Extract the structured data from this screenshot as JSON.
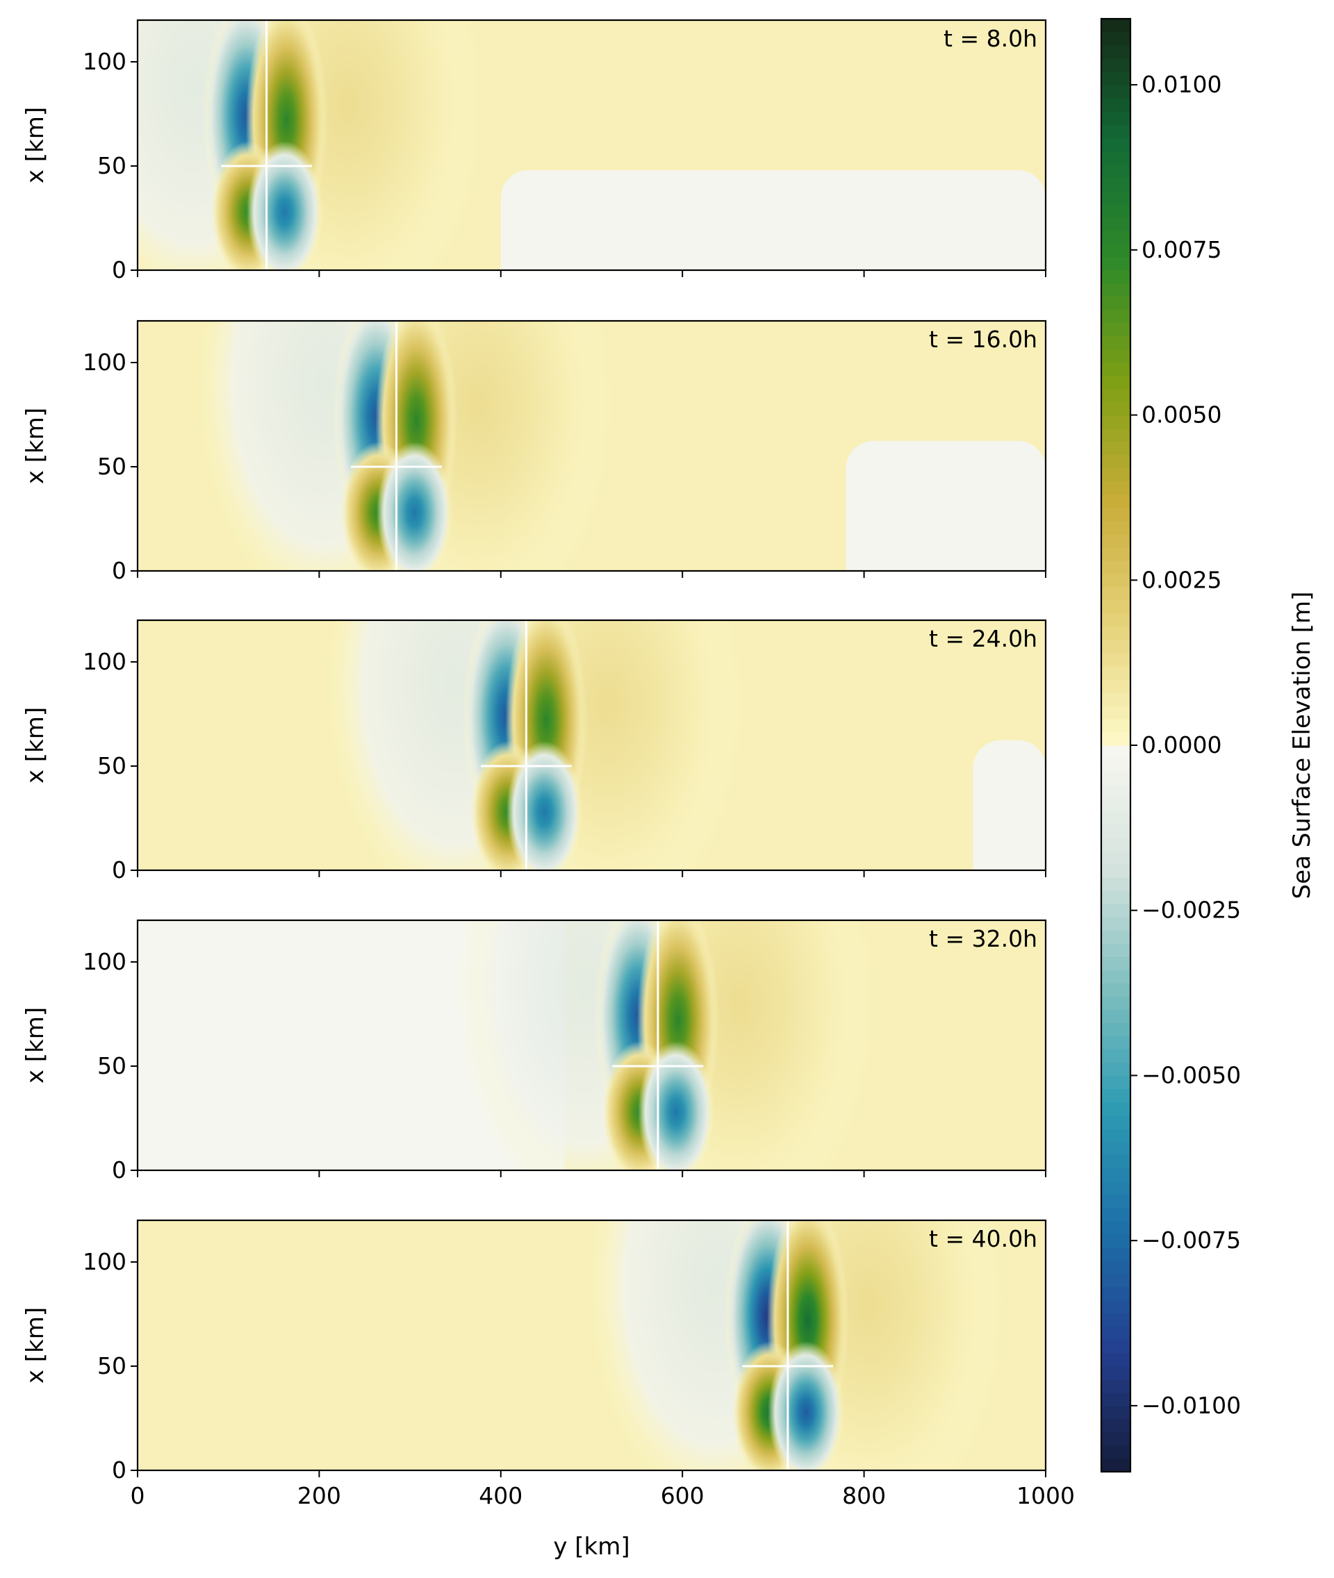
{
  "chart_data": {
    "type": "heatmap",
    "description_units": {
      "x_axis": "y [km]",
      "y_axis": "x [km]",
      "value": "Sea Surface Elevation [m]"
    },
    "xlabel": "y [km]",
    "ylabel": "x [km]",
    "xlim": [
      0,
      1000
    ],
    "ylim": [
      0,
      120
    ],
    "x_ticks": [
      0,
      200,
      400,
      600,
      800,
      1000
    ],
    "y_ticks": [
      0,
      50,
      100
    ],
    "grid": false,
    "shared_x": true,
    "panels": [
      {
        "label": "t = 8.0h",
        "time_h": 8.0,
        "dipole_center_y_km": 142
      },
      {
        "label": "t = 16.0h",
        "time_h": 16.0,
        "dipole_center_y_km": 285
      },
      {
        "label": "t = 24.0h",
        "time_h": 24.0,
        "dipole_center_y_km": 428
      },
      {
        "label": "t = 32.0h",
        "time_h": 32.0,
        "dipole_center_y_km": 573
      },
      {
        "label": "t = 40.0h",
        "time_h": 40.0,
        "dipole_center_y_km": 716
      }
    ],
    "colorbar": {
      "label": "Sea Surface Elevation [m]",
      "range": [
        -0.011,
        0.011
      ],
      "ticks": [
        0.01,
        0.0075,
        0.005,
        0.0025,
        0.0,
        -0.0025,
        -0.005,
        -0.0075,
        -0.01
      ],
      "tick_labels": [
        "0.0100",
        "0.0075",
        "0.0050",
        "0.0025",
        "0.0000",
        "−0.0025",
        "−0.0050",
        "−0.0075",
        "−0.0100"
      ],
      "colormap": "delta",
      "negative_colors": [
        "#f7f7f0",
        "#d6e3de",
        "#7fbfbf",
        "#2e9bb3",
        "#1d70a8",
        "#233f8f",
        "#151c3a"
      ],
      "positive_colors": [
        "#fdf9c9",
        "#e6d27a",
        "#c9ad3a",
        "#7f9f14",
        "#2f8a2a",
        "#136a36",
        "#142916"
      ]
    }
  }
}
